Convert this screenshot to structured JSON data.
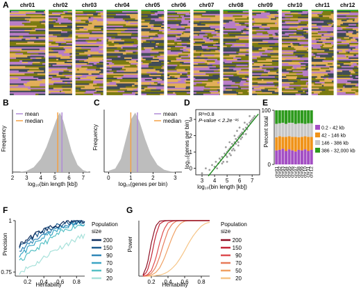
{
  "colors": {
    "purple": "#b87cc6",
    "olive": "#7a7a10",
    "orange": "#e1ae58",
    "darkgray": "#3e4a55",
    "green": "#2f7a1e",
    "hist": "#bdbdbd",
    "mean": "#b08ad6",
    "median": "#f4a144",
    "scatter": "#9e9e9e",
    "fitline": "#1d8a1d",
    "bar_purple": "#a44fc4",
    "bar_orange": "#f09319",
    "bar_gray": "#c8c8c8",
    "bar_green": "#2d9a1d",
    "blues": [
      "#0c2c5c",
      "#1c5a8e",
      "#2f86b7",
      "#3aa5c4",
      "#55c0c5",
      "#a6e1da"
    ],
    "reds": [
      "#8c0d22",
      "#c22336",
      "#dd4b4e",
      "#e77a58",
      "#f0a063",
      "#f6c486"
    ]
  },
  "panel_a": {
    "label": "A",
    "chromosomes": [
      "chr01",
      "chr02",
      "chr03",
      "chr04",
      "chr05",
      "chr06",
      "chr07",
      "chr08",
      "chr09",
      "chr10",
      "chr11",
      "chr12"
    ],
    "relative_widths": [
      1.0,
      0.66,
      0.78,
      0.88,
      0.64,
      0.64,
      0.74,
      0.72,
      0.74,
      0.74,
      0.62,
      0.6
    ],
    "palette": [
      "purple",
      "olive",
      "orange",
      "darkgray"
    ]
  },
  "panel_b": {
    "label": "B",
    "chart_data": {
      "type": "area",
      "xlabel": "log₁₀(bin length [kb])",
      "ylabel": "Frequency",
      "xticks": [
        "2",
        "3",
        "4",
        "5",
        "6",
        "7"
      ],
      "xlim": [
        2,
        7.5
      ],
      "mean": 5.5,
      "median": 5.2,
      "legend": [
        "mean",
        "median"
      ],
      "legend_position": "top-left",
      "x": [
        2.5,
        3.0,
        3.5,
        4.0,
        4.4,
        4.8,
        5.1,
        5.35,
        5.6,
        5.9,
        6.2,
        6.6,
        7.0,
        7.4
      ],
      "y": [
        0.0,
        0.02,
        0.08,
        0.22,
        0.42,
        0.68,
        0.88,
        1.0,
        0.86,
        0.6,
        0.34,
        0.12,
        0.03,
        0.0
      ]
    }
  },
  "panel_c": {
    "label": "C",
    "chart_data": {
      "type": "area",
      "xlabel": "log₁₀(genes per bin)",
      "ylabel": "Frequency",
      "xticks": [
        "0",
        "1",
        "2",
        "3"
      ],
      "xlim": [
        -0.2,
        3.3
      ],
      "mean": 1.3,
      "median": 1.0,
      "legend": [
        "mean",
        "median"
      ],
      "legend_position": "top-right",
      "x": [
        0.0,
        0.3,
        0.55,
        0.8,
        1.0,
        1.2,
        1.4,
        1.65,
        1.9,
        2.2,
        2.5,
        2.8,
        3.1
      ],
      "y": [
        0.02,
        0.06,
        0.22,
        0.58,
        0.88,
        1.0,
        0.84,
        0.55,
        0.3,
        0.12,
        0.04,
        0.01,
        0.0
      ]
    }
  },
  "panel_d": {
    "label": "D",
    "chart_data": {
      "type": "scatter",
      "xlabel": "log₁₀(bin length [kb])",
      "ylabel": "log₁₀(genes per bin)",
      "xticks": [
        "3",
        "4",
        "5",
        "6",
        "7"
      ],
      "yticks": [
        "0",
        "1",
        "2",
        "3"
      ],
      "xlim": [
        2.5,
        7.6
      ],
      "ylim": [
        -0.4,
        3.6
      ],
      "r2_text": "R²=0.8",
      "pvalue_text": "P-value < 2.2e⁻¹⁶",
      "fit": {
        "slope": 0.95,
        "intercept": -3.8
      },
      "points": [
        [
          3.0,
          -0.3
        ],
        [
          3.3,
          0.0
        ],
        [
          3.6,
          -0.1
        ],
        [
          3.8,
          0.2
        ],
        [
          4.0,
          0.1
        ],
        [
          4.1,
          0.4
        ],
        [
          4.3,
          0.3
        ],
        [
          4.4,
          0.6
        ],
        [
          4.5,
          0.5
        ],
        [
          4.6,
          0.7
        ],
        [
          4.7,
          0.4
        ],
        [
          4.8,
          0.9
        ],
        [
          4.9,
          0.8
        ],
        [
          5.0,
          1.0
        ],
        [
          5.0,
          0.7
        ],
        [
          5.1,
          1.1
        ],
        [
          5.2,
          1.2
        ],
        [
          5.2,
          0.9
        ],
        [
          5.3,
          1.3
        ],
        [
          5.4,
          1.1
        ],
        [
          5.4,
          1.5
        ],
        [
          5.5,
          1.4
        ],
        [
          5.5,
          1.2
        ],
        [
          5.6,
          1.6
        ],
        [
          5.7,
          1.5
        ],
        [
          5.7,
          1.8
        ],
        [
          5.8,
          1.7
        ],
        [
          5.9,
          1.9
        ],
        [
          5.9,
          1.6
        ],
        [
          6.0,
          2.0
        ],
        [
          6.1,
          2.1
        ],
        [
          6.1,
          1.8
        ],
        [
          6.2,
          2.2
        ],
        [
          6.3,
          2.1
        ],
        [
          6.3,
          2.4
        ],
        [
          6.4,
          2.3
        ],
        [
          6.5,
          2.5
        ],
        [
          6.6,
          2.4
        ],
        [
          6.6,
          2.7
        ],
        [
          6.7,
          2.6
        ],
        [
          6.8,
          2.8
        ],
        [
          6.9,
          2.9
        ],
        [
          7.0,
          3.0
        ],
        [
          7.1,
          3.1
        ],
        [
          7.2,
          3.2
        ],
        [
          4.2,
          0.0
        ],
        [
          4.6,
          0.3
        ],
        [
          5.0,
          0.4
        ],
        [
          5.3,
          0.8
        ],
        [
          5.6,
          1.1
        ],
        [
          5.9,
          1.4
        ],
        [
          6.2,
          1.9
        ],
        [
          6.5,
          2.1
        ],
        [
          4.9,
          1.3
        ],
        [
          5.2,
          1.6
        ],
        [
          5.6,
          2.0
        ],
        [
          5.8,
          2.3
        ],
        [
          6.0,
          2.5
        ],
        [
          6.4,
          2.8
        ],
        [
          6.8,
          3.2
        ]
      ]
    }
  },
  "panel_e": {
    "label": "E",
    "chart_data": {
      "type": "bar",
      "stacked": true,
      "ylabel": "Percent total",
      "yticks": [
        "0",
        "100"
      ],
      "ylim": [
        0,
        100
      ],
      "categories": [
        "chr01",
        "chr02",
        "chr03",
        "chr04",
        "chr05",
        "chr06",
        "chr07",
        "chr08",
        "chr09",
        "chr10",
        "chr11",
        "chr12"
      ],
      "legend_position": "right",
      "series": [
        {
          "name": "0.2 - 42 kb",
          "color": "bar_purple",
          "values": [
            26,
            27,
            29,
            25,
            28,
            26,
            24,
            27,
            26,
            28,
            25,
            27
          ]
        },
        {
          "name": "42 - 146 kb",
          "color": "bar_orange",
          "values": [
            24,
            25,
            22,
            26,
            24,
            25,
            27,
            23,
            25,
            24,
            26,
            24
          ]
        },
        {
          "name": "146 - 386 kb",
          "color": "bar_gray",
          "values": [
            25,
            24,
            26,
            24,
            25,
            26,
            24,
            26,
            25,
            23,
            25,
            25
          ]
        },
        {
          "name": "386 - 32,000 kb",
          "color": "bar_green",
          "values": [
            25,
            24,
            23,
            25,
            23,
            23,
            25,
            24,
            24,
            25,
            24,
            24
          ]
        }
      ]
    }
  },
  "panel_f": {
    "label": "F",
    "chart_data": {
      "type": "line",
      "xlabel": "Heritability",
      "ylabel": "Precision",
      "xticks": [
        "0.2",
        "0.4",
        "0.6",
        "0.8"
      ],
      "xtick_values": [
        0.2,
        0.4,
        0.6,
        0.8
      ],
      "yticks": [
        "0.75",
        "1"
      ],
      "ytick_values": [
        0.75,
        1.0
      ],
      "xlim": [
        0.05,
        0.9
      ],
      "ylim": [
        0.73,
        1.0
      ],
      "legend_title": "Population\nsize",
      "x": [
        0.1,
        0.2,
        0.3,
        0.4,
        0.5,
        0.6,
        0.7,
        0.8,
        0.9
      ],
      "series": [
        {
          "name": "200",
          "values": [
            0.88,
            0.91,
            0.935,
            0.955,
            0.97,
            0.98,
            0.99,
            0.995,
            1.0
          ]
        },
        {
          "name": "150",
          "values": [
            0.87,
            0.9,
            0.93,
            0.95,
            0.965,
            0.978,
            0.988,
            0.995,
            0.998
          ]
        },
        {
          "name": "90",
          "values": [
            0.85,
            0.88,
            0.91,
            0.935,
            0.955,
            0.97,
            0.98,
            0.99,
            0.995
          ]
        },
        {
          "name": "70",
          "values": [
            0.83,
            0.86,
            0.89,
            0.92,
            0.94,
            0.96,
            0.975,
            0.985,
            0.99
          ]
        },
        {
          "name": "50",
          "values": [
            0.8,
            0.83,
            0.86,
            0.89,
            0.915,
            0.94,
            0.96,
            0.975,
            0.985
          ]
        },
        {
          "name": "20",
          "values": [
            0.75,
            0.77,
            0.79,
            0.82,
            0.85,
            0.87,
            0.89,
            0.91,
            0.93
          ]
        }
      ]
    }
  },
  "panel_g": {
    "label": "G",
    "chart_data": {
      "type": "line",
      "xlabel": "Heritability",
      "ylabel": "Power",
      "xticks": [
        "0.2",
        "0.4",
        "0.6",
        "0.8"
      ],
      "xtick_values": [
        0.2,
        0.4,
        0.6,
        0.8
      ],
      "xlim": [
        0.05,
        0.9
      ],
      "ylim": [
        0,
        1.0
      ],
      "legend_title": "Population\nsize",
      "x": [
        0.1,
        0.15,
        0.2,
        0.25,
        0.3,
        0.35,
        0.4,
        0.45,
        0.5,
        0.55,
        0.6,
        0.65,
        0.7,
        0.75,
        0.8,
        0.85,
        0.9
      ],
      "series": [
        {
          "name": "200",
          "values": [
            0.02,
            0.2,
            0.6,
            0.9,
            0.99,
            1,
            1,
            1,
            1,
            1,
            1,
            1,
            1,
            1,
            1,
            1,
            1
          ]
        },
        {
          "name": "150",
          "values": [
            0.01,
            0.08,
            0.35,
            0.72,
            0.94,
            0.99,
            1,
            1,
            1,
            1,
            1,
            1,
            1,
            1,
            1,
            1,
            1
          ]
        },
        {
          "name": "90",
          "values": [
            0.0,
            0.02,
            0.1,
            0.3,
            0.6,
            0.84,
            0.96,
            0.99,
            1,
            1,
            1,
            1,
            1,
            1,
            1,
            1,
            1
          ]
        },
        {
          "name": "70",
          "values": [
            0.0,
            0.01,
            0.05,
            0.15,
            0.35,
            0.6,
            0.82,
            0.94,
            0.99,
            1,
            1,
            1,
            1,
            1,
            1,
            1,
            1
          ]
        },
        {
          "name": "50",
          "values": [
            0.0,
            0.0,
            0.02,
            0.06,
            0.15,
            0.3,
            0.5,
            0.7,
            0.86,
            0.95,
            0.99,
            1,
            1,
            1,
            1,
            1,
            1
          ]
        },
        {
          "name": "20",
          "values": [
            0.0,
            0.0,
            0.0,
            0.01,
            0.02,
            0.04,
            0.08,
            0.14,
            0.22,
            0.33,
            0.46,
            0.6,
            0.72,
            0.82,
            0.9,
            0.95,
            0.97
          ]
        }
      ]
    }
  }
}
